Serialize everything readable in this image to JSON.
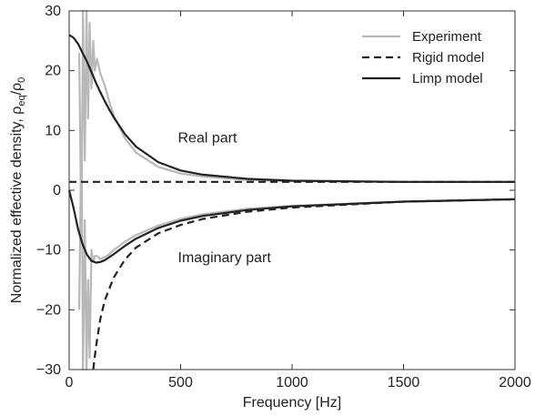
{
  "chart_data": {
    "type": "line",
    "xlabel": "Frequency [Hz]",
    "ylabel": "Normalized effective density, ρ",
    "ylabel_sub_1": "eq",
    "ylabel_mid": "/ρ",
    "ylabel_sub_2": "0",
    "xlim": [
      0,
      2000
    ],
    "ylim": [
      -30,
      30
    ],
    "xticks": [
      0,
      500,
      1000,
      1500,
      2000
    ],
    "yticks": [
      30,
      20,
      10,
      0,
      -10,
      -20,
      -30
    ],
    "grid": false,
    "legend_position": "top-right",
    "legend": [
      {
        "name": "Experiment",
        "color": "#b8b8b8",
        "dash": "solid"
      },
      {
        "name": "Rigid model",
        "color": "#222222",
        "dash": "dashed"
      },
      {
        "name": "Limp model",
        "color": "#222222",
        "dash": "solid"
      }
    ],
    "annotations": [
      {
        "text": "Real part",
        "x": 500,
        "y": 8
      },
      {
        "text": "Imaginary part",
        "x": 500,
        "y": -12
      }
    ],
    "series": [
      {
        "name": "Experiment",
        "part": "real",
        "x": [
          45,
          55,
          62,
          70,
          78,
          85,
          92,
          100,
          108,
          115,
          125,
          140,
          160,
          180,
          200,
          250,
          300,
          400,
          500,
          600,
          800,
          1000,
          1500,
          2000
        ],
        "y": [
          23,
          -8,
          30,
          5,
          30,
          12,
          28,
          17,
          25,
          20,
          22,
          19.5,
          17.5,
          14.8,
          12.5,
          8.7,
          6.3,
          3.9,
          2.8,
          2.3,
          1.7,
          1.5,
          1.4,
          1.4
        ]
      },
      {
        "name": "Experiment",
        "part": "imaginary",
        "x": [
          45,
          55,
          62,
          70,
          78,
          85,
          92,
          100,
          108,
          115,
          125,
          140,
          160,
          180,
          200,
          250,
          300,
          400,
          500,
          600,
          800,
          1000,
          1500,
          2000
        ],
        "y": [
          -20,
          10,
          -30,
          -5,
          -30,
          -15,
          -28,
          -10,
          -12,
          -11,
          -11,
          -11.5,
          -11.2,
          -10.7,
          -10,
          -8.6,
          -7.5,
          -5.9,
          -4.8,
          -4,
          -3.1,
          -2.6,
          -1.9,
          -1.5
        ]
      },
      {
        "name": "Rigid model",
        "part": "real",
        "x": [
          0,
          2000
        ],
        "y": [
          1.4,
          1.4
        ]
      },
      {
        "name": "Rigid model",
        "part": "imaginary",
        "x": [
          108,
          120,
          140,
          160,
          200,
          250,
          300,
          400,
          500,
          600,
          800,
          1000,
          1500,
          2000
        ],
        "y": [
          -30,
          -26.3,
          -21.5,
          -18.4,
          -14.6,
          -11.6,
          -9.6,
          -7.2,
          -5.8,
          -4.8,
          -3.6,
          -2.9,
          -1.9,
          -1.5
        ]
      },
      {
        "name": "Limp model",
        "part": "real",
        "x": [
          0,
          20,
          40,
          60,
          80,
          100,
          120,
          140,
          160,
          180,
          200,
          250,
          300,
          400,
          500,
          600,
          800,
          1000,
          1500,
          2000
        ],
        "y": [
          26,
          25.5,
          24.5,
          23,
          21.5,
          19.8,
          18,
          16.4,
          14.9,
          13.5,
          12.2,
          9.4,
          7.3,
          4.7,
          3.3,
          2.6,
          1.9,
          1.6,
          1.4,
          1.4
        ]
      },
      {
        "name": "Limp model",
        "part": "imaginary",
        "x": [
          0,
          20,
          40,
          60,
          80,
          100,
          120,
          140,
          160,
          180,
          200,
          250,
          300,
          400,
          500,
          600,
          800,
          1000,
          1500,
          2000
        ],
        "y": [
          0,
          -3,
          -6.5,
          -9,
          -10.8,
          -11.8,
          -12.1,
          -12,
          -11.7,
          -11.2,
          -10.7,
          -9.3,
          -8.1,
          -6.3,
          -5.1,
          -4.3,
          -3.3,
          -2.7,
          -1.9,
          -1.5
        ]
      }
    ]
  }
}
